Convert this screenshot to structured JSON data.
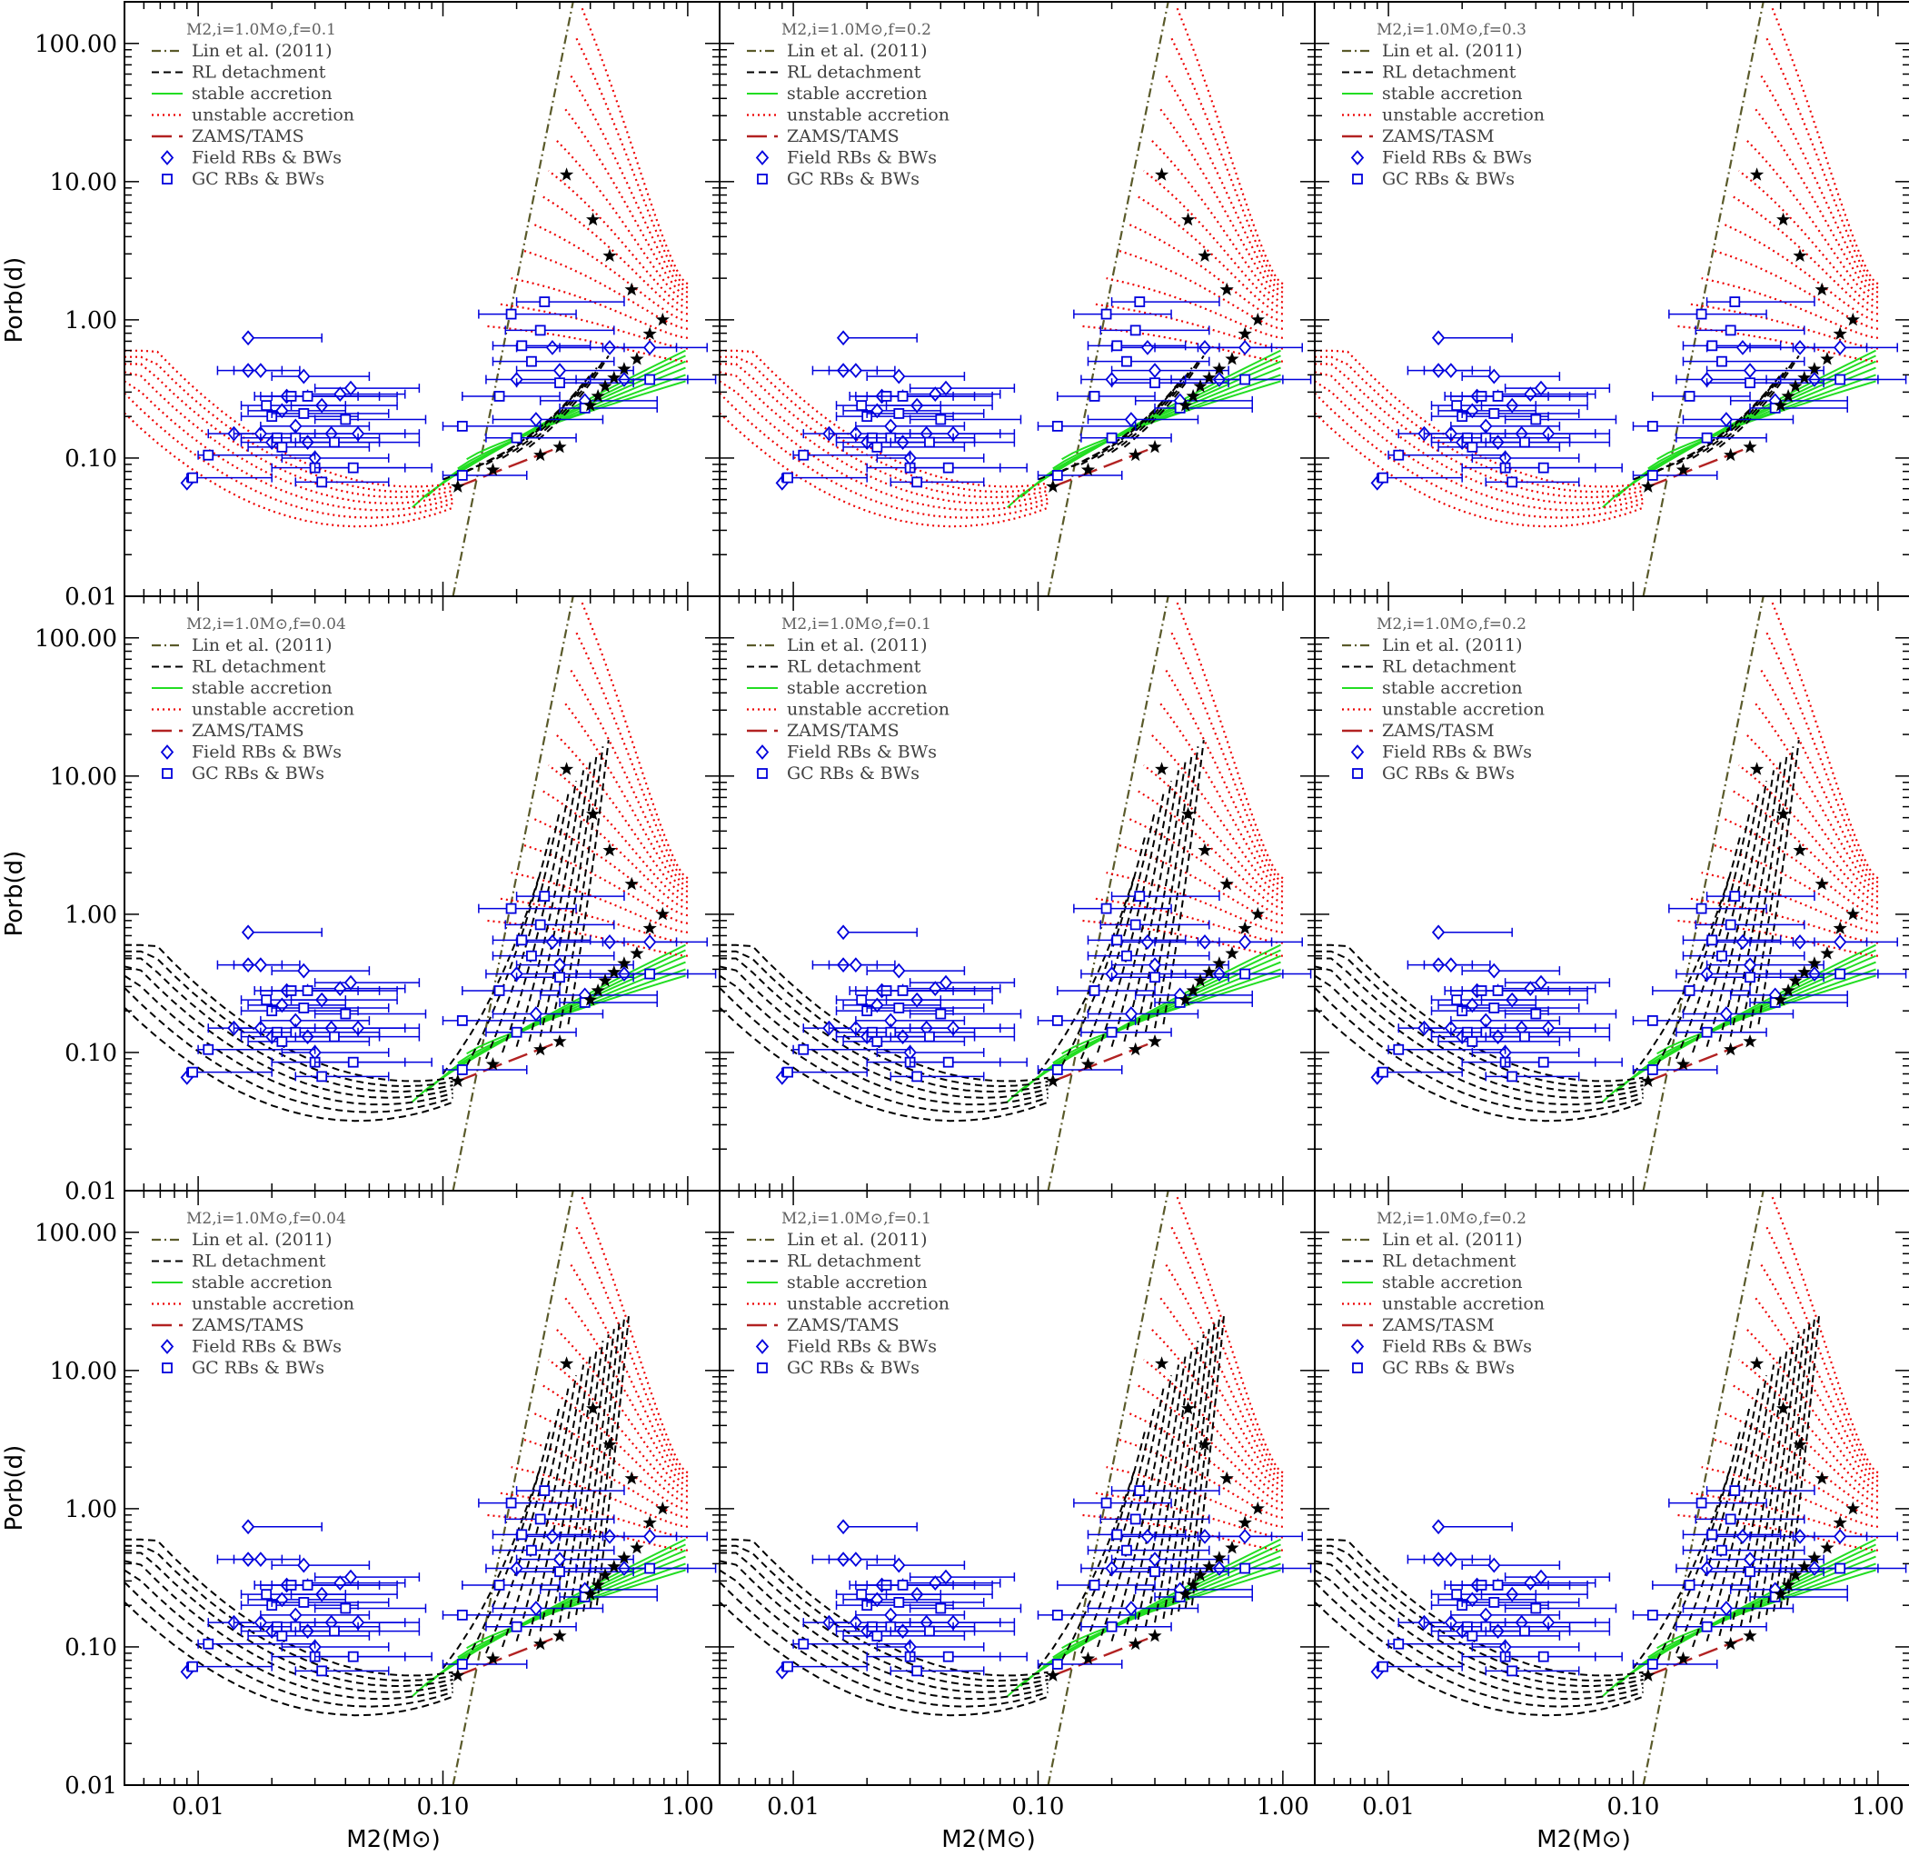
{
  "chart_data": {
    "type": "scatter",
    "layout": "3x3 grid of log-log panels",
    "xlabel": "M2(M⊙)",
    "ylabel": "Porb(d)",
    "xlim": [
      0.005,
      1.35
    ],
    "ylim": [
      0.01,
      200
    ],
    "x_ticks": [
      "0.01",
      "0.10",
      "1.00"
    ],
    "y_ticks": [
      "0.01",
      "0.10",
      "1.00",
      "10.00",
      "100.00"
    ],
    "legend_entries": [
      {
        "label": "Lin et al. (2011)",
        "style": "dash-dot",
        "color": "#5a5a2a"
      },
      {
        "label": "RL detachment",
        "style": "dashed",
        "color": "#000000"
      },
      {
        "label": "stable accretion",
        "style": "solid",
        "color": "#22dd22"
      },
      {
        "label": "unstable accretion",
        "style": "dotted",
        "color": "#ee0000"
      },
      {
        "label": "ZAMS/TAMS",
        "style": "long-dash",
        "color": "#b22222"
      },
      {
        "label": "Field RBs & BWs",
        "marker": "diamond",
        "color": "#0000dd"
      },
      {
        "label": "GC RBs & BWs",
        "marker": "square",
        "color": "#0000dd"
      }
    ],
    "panels": [
      {
        "title": "M2,i=1.0M⊙,f=0.1",
        "zams_label": "ZAMS/TAMS",
        "variant": "A"
      },
      {
        "title": "M2,i=1.0M⊙,f=0.2",
        "zams_label": "ZAMS/TAMS",
        "variant": "A"
      },
      {
        "title": "M2,i=1.0M⊙,f=0.3",
        "zams_label": "ZAMS/TASM",
        "variant": "A"
      },
      {
        "title": "M2,i=1.0M⊙,f=0.04",
        "zams_label": "ZAMS/TAMS",
        "variant": "B"
      },
      {
        "title": "M2,i=1.0M⊙,f=0.1",
        "zams_label": "ZAMS/TAMS",
        "variant": "B"
      },
      {
        "title": "M2,i=1.0M⊙,f=0.2",
        "zams_label": "ZAMS/TASM",
        "variant": "B"
      },
      {
        "title": "M2,i=1.0M⊙,f=0.04",
        "zams_label": "ZAMS/TAMS",
        "variant": "C"
      },
      {
        "title": "M2,i=1.0M⊙,f=0.1",
        "zams_label": "ZAMS/TAMS",
        "variant": "C"
      },
      {
        "title": "M2,i=1.0M⊙,f=0.2",
        "zams_label": "ZAMS/TASM",
        "variant": "C"
      }
    ],
    "field_points": [
      {
        "m": 0.009,
        "p": 0.066,
        "lo": 0.009,
        "hi": 0.009
      },
      {
        "m": 0.014,
        "p": 0.15,
        "lo": 0.011,
        "hi": 0.018
      },
      {
        "m": 0.016,
        "p": 0.74,
        "lo": 0.016,
        "hi": 0.032
      },
      {
        "m": 0.016,
        "p": 0.43,
        "lo": 0.012,
        "hi": 0.022
      },
      {
        "m": 0.018,
        "p": 0.43,
        "lo": 0.014,
        "hi": 0.026
      },
      {
        "m": 0.018,
        "p": 0.15,
        "lo": 0.014,
        "hi": 0.03
      },
      {
        "m": 0.02,
        "p": 0.13,
        "lo": 0.015,
        "hi": 0.035
      },
      {
        "m": 0.022,
        "p": 0.22,
        "lo": 0.016,
        "hi": 0.04
      },
      {
        "m": 0.023,
        "p": 0.28,
        "lo": 0.017,
        "hi": 0.045
      },
      {
        "m": 0.025,
        "p": 0.17,
        "lo": 0.018,
        "hi": 0.05
      },
      {
        "m": 0.027,
        "p": 0.39,
        "lo": 0.02,
        "hi": 0.05
      },
      {
        "m": 0.028,
        "p": 0.13,
        "lo": 0.02,
        "hi": 0.055
      },
      {
        "m": 0.03,
        "p": 0.1,
        "lo": 0.022,
        "hi": 0.06
      },
      {
        "m": 0.032,
        "p": 0.24,
        "lo": 0.024,
        "hi": 0.065
      },
      {
        "m": 0.035,
        "p": 0.15,
        "lo": 0.025,
        "hi": 0.07
      },
      {
        "m": 0.038,
        "p": 0.29,
        "lo": 0.028,
        "hi": 0.07
      },
      {
        "m": 0.042,
        "p": 0.32,
        "lo": 0.03,
        "hi": 0.08
      },
      {
        "m": 0.045,
        "p": 0.15,
        "lo": 0.03,
        "hi": 0.08
      },
      {
        "m": 0.2,
        "p": 0.37,
        "lo": 0.15,
        "hi": 0.4
      },
      {
        "m": 0.24,
        "p": 0.19,
        "lo": 0.16,
        "hi": 0.45
      },
      {
        "m": 0.28,
        "p": 0.63,
        "lo": 0.2,
        "hi": 0.55
      },
      {
        "m": 0.3,
        "p": 0.43,
        "lo": 0.2,
        "hi": 0.6
      },
      {
        "m": 0.38,
        "p": 0.26,
        "lo": 0.25,
        "hi": 0.75
      },
      {
        "m": 0.48,
        "p": 0.63,
        "lo": 0.3,
        "hi": 0.9
      },
      {
        "m": 0.55,
        "p": 0.37,
        "lo": 0.35,
        "hi": 1.0
      },
      {
        "m": 0.7,
        "p": 0.63,
        "lo": 0.45,
        "hi": 1.2
      }
    ],
    "gc_points": [
      {
        "m": 0.0095,
        "p": 0.072,
        "lo": 0.009,
        "hi": 0.02
      },
      {
        "m": 0.011,
        "p": 0.105,
        "lo": 0.01,
        "hi": 0.03
      },
      {
        "m": 0.019,
        "p": 0.24,
        "lo": 0.015,
        "hi": 0.04
      },
      {
        "m": 0.02,
        "p": 0.2,
        "lo": 0.015,
        "hi": 0.045
      },
      {
        "m": 0.021,
        "p": 0.14,
        "lo": 0.015,
        "hi": 0.045
      },
      {
        "m": 0.022,
        "p": 0.12,
        "lo": 0.016,
        "hi": 0.05
      },
      {
        "m": 0.024,
        "p": 0.28,
        "lo": 0.018,
        "hi": 0.055
      },
      {
        "m": 0.025,
        "p": 0.14,
        "lo": 0.018,
        "hi": 0.055
      },
      {
        "m": 0.027,
        "p": 0.21,
        "lo": 0.02,
        "hi": 0.06
      },
      {
        "m": 0.028,
        "p": 0.28,
        "lo": 0.02,
        "hi": 0.065
      },
      {
        "m": 0.03,
        "p": 0.085,
        "lo": 0.02,
        "hi": 0.07
      },
      {
        "m": 0.032,
        "p": 0.067,
        "lo": 0.025,
        "hi": 0.06
      },
      {
        "m": 0.036,
        "p": 0.13,
        "lo": 0.025,
        "hi": 0.08
      },
      {
        "m": 0.04,
        "p": 0.19,
        "lo": 0.03,
        "hi": 0.085
      },
      {
        "m": 0.043,
        "p": 0.085,
        "lo": 0.03,
        "hi": 0.09
      },
      {
        "m": 0.12,
        "p": 0.075,
        "lo": 0.1,
        "hi": 0.22
      },
      {
        "m": 0.12,
        "p": 0.17,
        "lo": 0.1,
        "hi": 0.25
      },
      {
        "m": 0.17,
        "p": 0.28,
        "lo": 0.12,
        "hi": 0.3
      },
      {
        "m": 0.19,
        "p": 1.1,
        "lo": 0.14,
        "hi": 0.35
      },
      {
        "m": 0.2,
        "p": 0.14,
        "lo": 0.15,
        "hi": 0.35
      },
      {
        "m": 0.21,
        "p": 0.65,
        "lo": 0.16,
        "hi": 0.4
      },
      {
        "m": 0.23,
        "p": 0.5,
        "lo": 0.16,
        "hi": 0.5
      },
      {
        "m": 0.25,
        "p": 0.84,
        "lo": 0.18,
        "hi": 0.5
      },
      {
        "m": 0.26,
        "p": 1.35,
        "lo": 0.2,
        "hi": 0.55
      },
      {
        "m": 0.3,
        "p": 0.35,
        "lo": 0.2,
        "hi": 0.6
      },
      {
        "m": 0.38,
        "p": 0.23,
        "lo": 0.3,
        "hi": 0.75
      },
      {
        "m": 0.7,
        "p": 0.37,
        "lo": 0.4,
        "hi": 1.3
      }
    ],
    "star_points": [
      {
        "m": 0.115,
        "p": 0.062
      },
      {
        "m": 0.16,
        "p": 0.082
      },
      {
        "m": 0.25,
        "p": 0.105
      },
      {
        "m": 0.3,
        "p": 0.12
      },
      {
        "m": 0.32,
        "p": 11.2
      },
      {
        "m": 0.41,
        "p": 5.3
      },
      {
        "m": 0.48,
        "p": 2.9
      },
      {
        "m": 0.59,
        "p": 1.65
      },
      {
        "m": 0.7,
        "p": 0.79
      },
      {
        "m": 0.79,
        "p": 1.0
      },
      {
        "m": 0.62,
        "p": 0.52
      },
      {
        "m": 0.55,
        "p": 0.44
      },
      {
        "m": 0.5,
        "p": 0.38
      },
      {
        "m": 0.46,
        "p": 0.33
      },
      {
        "m": 0.43,
        "p": 0.28
      },
      {
        "m": 0.4,
        "p": 0.24
      }
    ],
    "lin_line": [
      [
        0.11,
        0.01
      ],
      [
        0.34,
        200
      ]
    ],
    "stable_curves": [
      {
        "m0": 0.075,
        "p0": 0.044,
        "p1": 0.6
      },
      {
        "m0": 0.085,
        "p0": 0.052,
        "p1": 0.55
      },
      {
        "m0": 0.095,
        "p0": 0.062,
        "p1": 0.5
      },
      {
        "m0": 0.105,
        "p0": 0.072,
        "p1": 0.45
      },
      {
        "m0": 0.115,
        "p0": 0.084,
        "p1": 0.4
      },
      {
        "m0": 0.125,
        "p0": 0.098,
        "p1": 0.36
      }
    ],
    "unstable_start_p": [
      0.9,
      1.3,
      2.0,
      3.2,
      5,
      8,
      12,
      20,
      35,
      60,
      110,
      180
    ]
  }
}
